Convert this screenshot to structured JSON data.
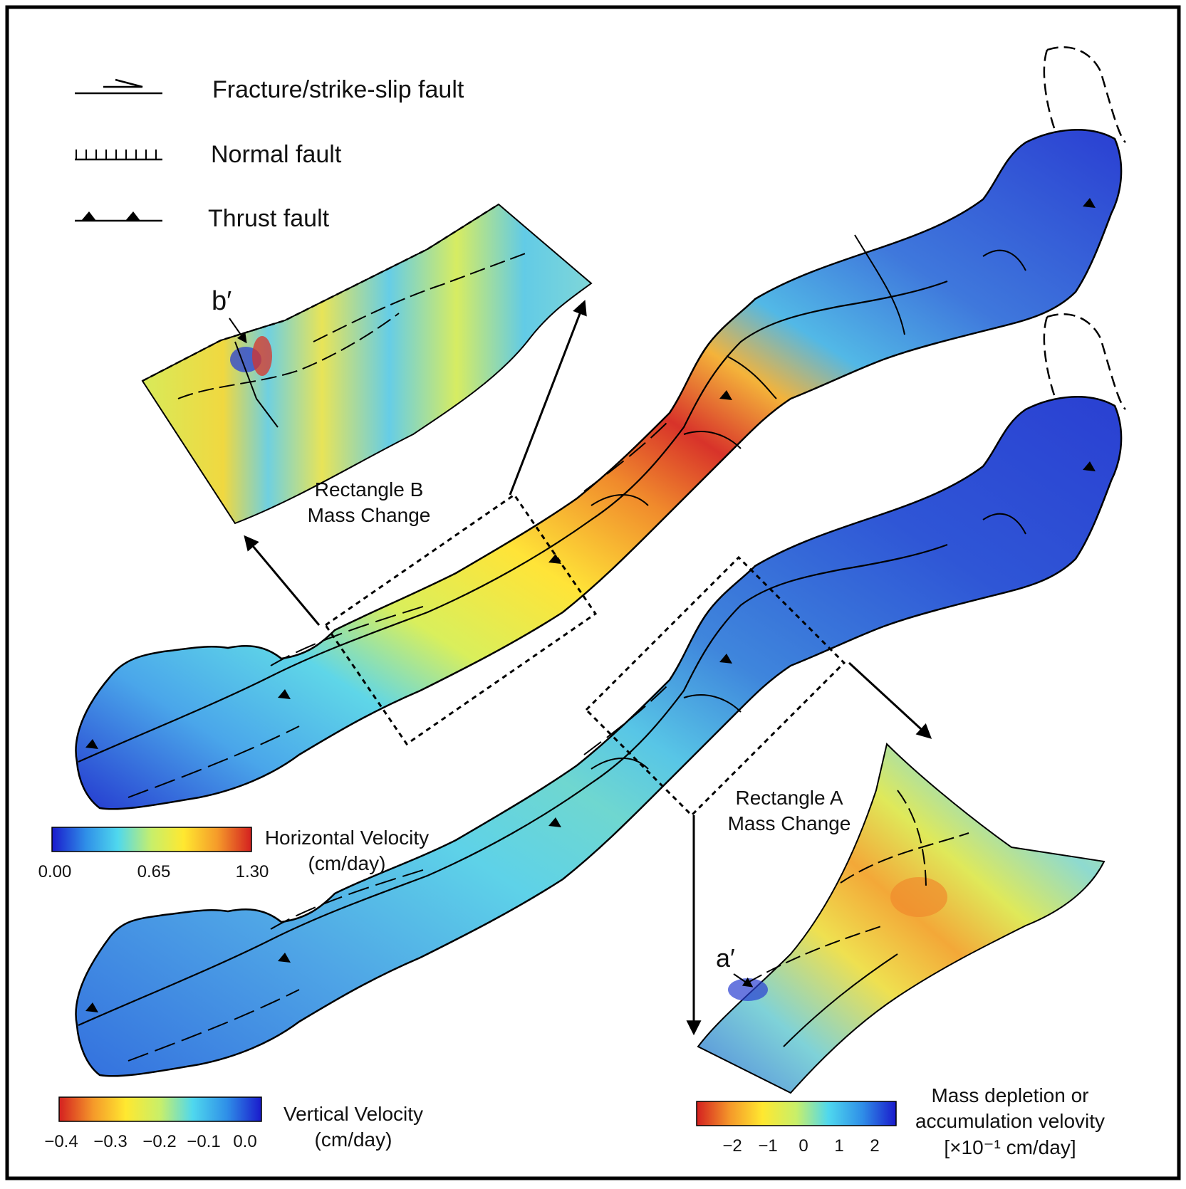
{
  "legend": {
    "fracture": "Fracture/strike-slip fault",
    "normal": "Normal fault",
    "thrust": "Thrust fault"
  },
  "labels": {
    "b_prime": "b′",
    "a_prime": "a′",
    "rect_b_line1": "Rectangle B",
    "rect_b_line2": "Mass Change",
    "rect_a_line1": "Rectangle A",
    "rect_a_line2": "Mass Change"
  },
  "colorbars": {
    "horizontal": {
      "title": "Horizontal Velocity",
      "unit": "(cm/day)",
      "ticks": [
        "0.00",
        "0.65",
        "1.30"
      ],
      "colors": [
        "#1a1acc",
        "#2f8fe8",
        "#4fd8ee",
        "#c8ef6a",
        "#ffe830",
        "#f59a2a",
        "#d42020"
      ]
    },
    "vertical": {
      "title": "Vertical Velocity",
      "unit": "(cm/day)",
      "ticks": [
        "−0.4",
        "−0.3",
        "−0.2",
        "−0.1",
        "0.0"
      ],
      "colors": [
        "#d42020",
        "#f59a2a",
        "#ffe830",
        "#c8ef6a",
        "#4fd8ee",
        "#2f8fe8",
        "#1a1acc"
      ]
    },
    "mass": {
      "title_line1": "Mass depletion or",
      "title_line2": "accumulation velovity",
      "unit": "[×10⁻¹ cm/day]",
      "ticks": [
        "−2",
        "−1",
        "0",
        "1",
        "2"
      ],
      "colors": [
        "#d42020",
        "#f59a2a",
        "#ffe830",
        "#c8ef6a",
        "#4fd8ee",
        "#2f8fe8",
        "#1a1acc"
      ]
    }
  }
}
